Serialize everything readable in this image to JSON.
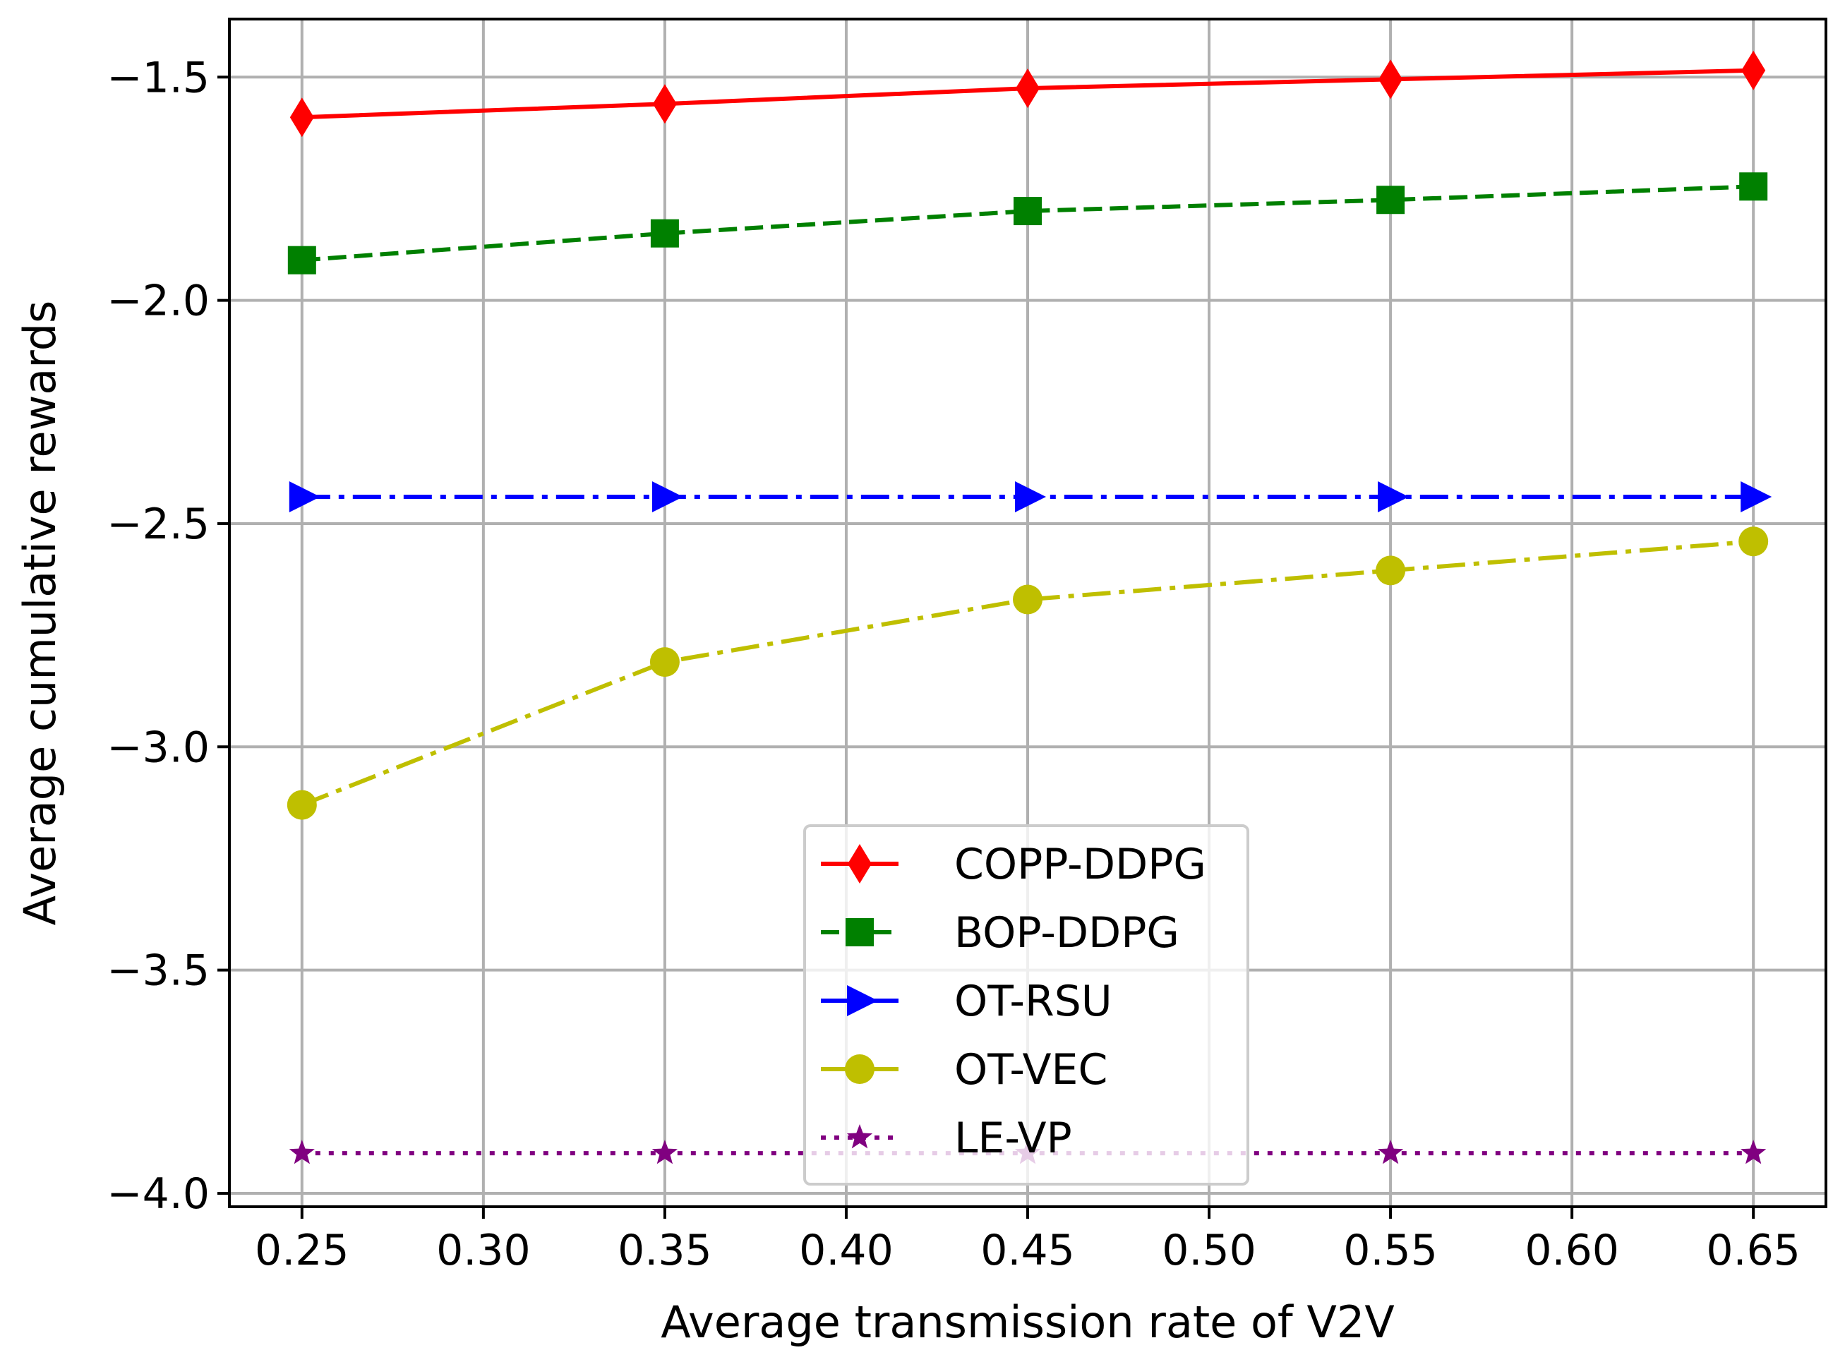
{
  "chart_data": {
    "type": "line",
    "title": "",
    "xlabel": "Average transmission rate of V2V",
    "ylabel": "Average cumulative rewards",
    "x": [
      0.25,
      0.35,
      0.45,
      0.55,
      0.65
    ],
    "xlim": [
      0.23,
      0.67
    ],
    "ylim": [
      -4.03,
      -1.37
    ],
    "x_ticks": [
      "0.25",
      "0.30",
      "0.35",
      "0.40",
      "0.45",
      "0.50",
      "0.55",
      "0.60",
      "0.65"
    ],
    "y_ticks": [
      "−1.5",
      "−2.0",
      "−2.5",
      "−3.0",
      "−3.5",
      "−4.0"
    ],
    "grid": true,
    "legend_position": "lower-center",
    "series": [
      {
        "name": "COPP-DDPG",
        "color": "#ff0000",
        "marker": "diamond",
        "linestyle": "solid",
        "values": [
          -1.59,
          -1.56,
          -1.525,
          -1.505,
          -1.485
        ]
      },
      {
        "name": "BOP-DDPG",
        "color": "#008000",
        "marker": "square",
        "linestyle": "dashed",
        "values": [
          -1.91,
          -1.85,
          -1.8,
          -1.775,
          -1.745
        ]
      },
      {
        "name": "OT-RSU",
        "color": "#0000ff",
        "marker": "triangle-right",
        "linestyle": "dashdot",
        "values": [
          -2.44,
          -2.44,
          -2.44,
          -2.44,
          -2.44
        ]
      },
      {
        "name": "OT-VEC",
        "color": "#bfbf00",
        "marker": "circle",
        "linestyle": "dashdot",
        "values": [
          -3.13,
          -2.81,
          -2.67,
          -2.605,
          -2.54
        ]
      },
      {
        "name": "LE-VP",
        "color": "#800080",
        "marker": "star",
        "linestyle": "dotted",
        "values": [
          -3.91,
          -3.91,
          -3.91,
          -3.91,
          -3.91
        ]
      }
    ]
  }
}
